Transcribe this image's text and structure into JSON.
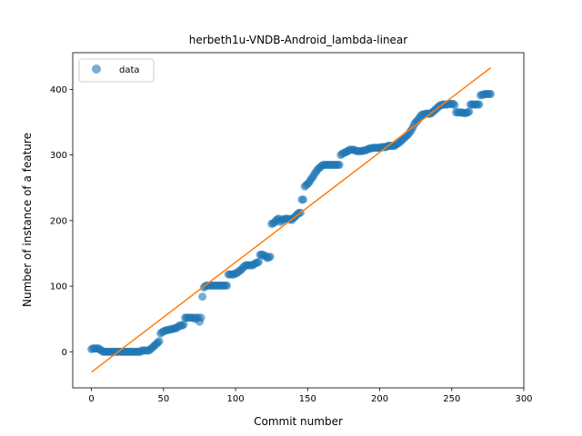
{
  "chart_data": {
    "type": "scatter",
    "title": "herbeth1u-VNDB-Android_lambda-linear",
    "xlabel": "Commit number",
    "ylabel": "Number of instance of a feature",
    "xlim": [
      -13,
      300
    ],
    "ylim": [
      -55,
      456
    ],
    "xticks": [
      0,
      50,
      100,
      150,
      200,
      250,
      300
    ],
    "yticks": [
      0,
      100,
      200,
      300,
      400
    ],
    "grid": false,
    "legend": {
      "placement": "top-left",
      "entries": [
        "data"
      ]
    },
    "series": [
      {
        "name": "data",
        "kind": "scatter",
        "color": "#1f77b4",
        "points": [
          [
            0,
            4
          ],
          [
            1,
            5
          ],
          [
            2,
            5
          ],
          [
            3,
            5
          ],
          [
            4,
            5
          ],
          [
            5,
            5
          ],
          [
            6,
            3
          ],
          [
            7,
            2
          ],
          [
            8,
            0
          ],
          [
            9,
            0
          ],
          [
            10,
            0
          ],
          [
            11,
            0
          ],
          [
            12,
            0
          ],
          [
            13,
            0
          ],
          [
            14,
            0
          ],
          [
            15,
            0
          ],
          [
            16,
            0
          ],
          [
            17,
            0
          ],
          [
            18,
            0
          ],
          [
            19,
            0
          ],
          [
            20,
            0
          ],
          [
            21,
            0
          ],
          [
            22,
            0
          ],
          [
            23,
            0
          ],
          [
            24,
            0
          ],
          [
            25,
            0
          ],
          [
            26,
            0
          ],
          [
            27,
            0
          ],
          [
            28,
            0
          ],
          [
            29,
            0
          ],
          [
            30,
            0
          ],
          [
            31,
            0
          ],
          [
            32,
            0
          ],
          [
            33,
            0
          ],
          [
            34,
            0
          ],
          [
            35,
            2
          ],
          [
            36,
            2
          ],
          [
            37,
            2
          ],
          [
            38,
            2
          ],
          [
            39,
            2
          ],
          [
            40,
            2
          ],
          [
            41,
            4
          ],
          [
            42,
            6
          ],
          [
            43,
            8
          ],
          [
            44,
            10
          ],
          [
            45,
            12
          ],
          [
            46,
            14
          ],
          [
            47,
            16
          ],
          [
            48,
            28
          ],
          [
            49,
            30
          ],
          [
            50,
            31
          ],
          [
            51,
            32
          ],
          [
            52,
            33
          ],
          [
            53,
            33
          ],
          [
            54,
            34
          ],
          [
            55,
            34
          ],
          [
            56,
            35
          ],
          [
            57,
            35
          ],
          [
            58,
            36
          ],
          [
            59,
            36
          ],
          [
            60,
            38
          ],
          [
            61,
            40
          ],
          [
            62,
            40
          ],
          [
            63,
            40
          ],
          [
            64,
            42
          ],
          [
            65,
            52
          ],
          [
            66,
            52
          ],
          [
            67,
            52
          ],
          [
            68,
            52
          ],
          [
            69,
            52
          ],
          [
            70,
            52
          ],
          [
            71,
            52
          ],
          [
            72,
            50
          ],
          [
            73,
            52
          ],
          [
            74,
            52
          ],
          [
            75,
            46
          ],
          [
            76,
            52
          ],
          [
            77,
            84
          ],
          [
            78,
            98
          ],
          [
            79,
            100
          ],
          [
            80,
            101
          ],
          [
            81,
            101
          ],
          [
            82,
            101
          ],
          [
            83,
            101
          ],
          [
            84,
            101
          ],
          [
            85,
            101
          ],
          [
            86,
            101
          ],
          [
            87,
            101
          ],
          [
            88,
            101
          ],
          [
            89,
            101
          ],
          [
            90,
            101
          ],
          [
            91,
            101
          ],
          [
            92,
            101
          ],
          [
            93,
            101
          ],
          [
            94,
            101
          ],
          [
            95,
            118
          ],
          [
            96,
            118
          ],
          [
            97,
            118
          ],
          [
            98,
            118
          ],
          [
            99,
            118
          ],
          [
            100,
            120
          ],
          [
            101,
            120
          ],
          [
            102,
            122
          ],
          [
            103,
            124
          ],
          [
            104,
            125
          ],
          [
            105,
            128
          ],
          [
            106,
            130
          ],
          [
            107,
            132
          ],
          [
            108,
            132
          ],
          [
            109,
            132
          ],
          [
            110,
            132
          ],
          [
            111,
            132
          ],
          [
            112,
            132
          ],
          [
            113,
            134
          ],
          [
            114,
            135
          ],
          [
            115,
            136
          ],
          [
            116,
            137
          ],
          [
            117,
            148
          ],
          [
            118,
            148
          ],
          [
            119,
            148
          ],
          [
            120,
            146
          ],
          [
            121,
            146
          ],
          [
            122,
            143
          ],
          [
            123,
            144
          ],
          [
            124,
            145
          ],
          [
            125,
            195
          ],
          [
            126,
            196
          ],
          [
            127,
            197
          ],
          [
            128,
            200
          ],
          [
            129,
            202
          ],
          [
            130,
            203
          ],
          [
            131,
            198
          ],
          [
            132,
            200
          ],
          [
            133,
            202
          ],
          [
            134,
            202
          ],
          [
            135,
            203
          ],
          [
            136,
            203
          ],
          [
            137,
            202
          ],
          [
            138,
            202
          ],
          [
            139,
            201
          ],
          [
            140,
            204
          ],
          [
            141,
            205
          ],
          [
            142,
            208
          ],
          [
            143,
            210
          ],
          [
            144,
            212
          ],
          [
            145,
            212
          ],
          [
            146,
            232
          ],
          [
            147,
            232
          ],
          [
            148,
            252
          ],
          [
            149,
            254
          ],
          [
            150,
            256
          ],
          [
            151,
            258
          ],
          [
            152,
            262
          ],
          [
            153,
            265
          ],
          [
            154,
            268
          ],
          [
            155,
            272
          ],
          [
            156,
            275
          ],
          [
            157,
            278
          ],
          [
            158,
            280
          ],
          [
            159,
            282
          ],
          [
            160,
            284
          ],
          [
            161,
            285
          ],
          [
            162,
            285
          ],
          [
            163,
            285
          ],
          [
            164,
            285
          ],
          [
            165,
            285
          ],
          [
            166,
            285
          ],
          [
            167,
            285
          ],
          [
            168,
            285
          ],
          [
            169,
            285
          ],
          [
            170,
            285
          ],
          [
            171,
            285
          ],
          [
            172,
            285
          ],
          [
            173,
            300
          ],
          [
            174,
            302
          ],
          [
            175,
            303
          ],
          [
            176,
            304
          ],
          [
            177,
            305
          ],
          [
            178,
            306
          ],
          [
            179,
            308
          ],
          [
            180,
            308
          ],
          [
            181,
            308
          ],
          [
            182,
            308
          ],
          [
            183,
            307
          ],
          [
            184,
            306
          ],
          [
            185,
            306
          ],
          [
            186,
            306
          ],
          [
            187,
            306
          ],
          [
            188,
            306
          ],
          [
            189,
            307
          ],
          [
            190,
            307
          ],
          [
            191,
            308
          ],
          [
            192,
            309
          ],
          [
            193,
            310
          ],
          [
            194,
            310
          ],
          [
            195,
            311
          ],
          [
            196,
            311
          ],
          [
            197,
            311
          ],
          [
            198,
            311
          ],
          [
            199,
            311
          ],
          [
            200,
            311
          ],
          [
            201,
            312
          ],
          [
            202,
            312
          ],
          [
            203,
            312
          ],
          [
            204,
            312
          ],
          [
            205,
            313
          ],
          [
            206,
            314
          ],
          [
            207,
            314
          ],
          [
            208,
            314
          ],
          [
            209,
            314
          ],
          [
            210,
            314
          ],
          [
            211,
            315
          ],
          [
            212,
            317
          ],
          [
            213,
            318
          ],
          [
            214,
            320
          ],
          [
            215,
            322
          ],
          [
            216,
            324
          ],
          [
            217,
            326
          ],
          [
            218,
            328
          ],
          [
            219,
            330
          ],
          [
            220,
            332
          ],
          [
            221,
            335
          ],
          [
            222,
            338
          ],
          [
            223,
            342
          ],
          [
            224,
            347
          ],
          [
            225,
            350
          ],
          [
            226,
            352
          ],
          [
            227,
            355
          ],
          [
            228,
            358
          ],
          [
            229,
            361
          ],
          [
            230,
            362
          ],
          [
            231,
            362
          ],
          [
            232,
            363
          ],
          [
            233,
            363
          ],
          [
            234,
            363
          ],
          [
            235,
            363
          ],
          [
            236,
            364
          ],
          [
            237,
            366
          ],
          [
            238,
            368
          ],
          [
            239,
            370
          ],
          [
            240,
            372
          ],
          [
            241,
            374
          ],
          [
            242,
            376
          ],
          [
            243,
            376
          ],
          [
            244,
            377
          ],
          [
            245,
            377
          ],
          [
            246,
            377
          ],
          [
            247,
            377
          ],
          [
            248,
            378
          ],
          [
            249,
            378
          ],
          [
            250,
            378
          ],
          [
            251,
            378
          ],
          [
            252,
            376
          ],
          [
            253,
            365
          ],
          [
            254,
            365
          ],
          [
            255,
            365
          ],
          [
            256,
            365
          ],
          [
            257,
            365
          ],
          [
            258,
            364
          ],
          [
            259,
            364
          ],
          [
            260,
            364
          ],
          [
            261,
            365
          ],
          [
            262,
            366
          ],
          [
            263,
            377
          ],
          [
            264,
            377
          ],
          [
            265,
            377
          ],
          [
            266,
            377
          ],
          [
            267,
            377
          ],
          [
            268,
            377
          ],
          [
            269,
            377
          ],
          [
            270,
            391
          ],
          [
            271,
            392
          ],
          [
            272,
            392
          ],
          [
            273,
            393
          ],
          [
            274,
            393
          ],
          [
            275,
            393
          ],
          [
            276,
            393
          ],
          [
            277,
            393
          ]
        ]
      },
      {
        "name": "",
        "kind": "line",
        "color": "#ff7f0e",
        "points": [
          [
            0,
            -31
          ],
          [
            277,
            433
          ]
        ]
      }
    ]
  }
}
